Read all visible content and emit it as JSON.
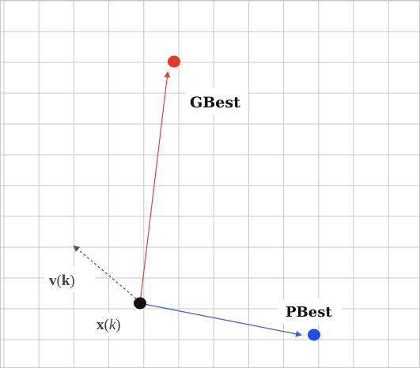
{
  "diagram": {
    "labels": {
      "gbest": "GBest",
      "pbest": "PBest",
      "velocity_bold": "v",
      "velocity_arg_bold": "k",
      "position_bold": "x",
      "position_arg_italic": "k",
      "open_paren": "(",
      "close_paren": ")"
    },
    "nodes": {
      "current_color": "#111111",
      "gbest_color": "#e5372b",
      "pbest_color": "#1f4fe6"
    },
    "arrows": {
      "to_gbest_color": "#d9463a",
      "to_pbest_color": "#3b5fd9",
      "velocity_color": "#555555"
    },
    "grid_color": "#c8c8c8"
  }
}
